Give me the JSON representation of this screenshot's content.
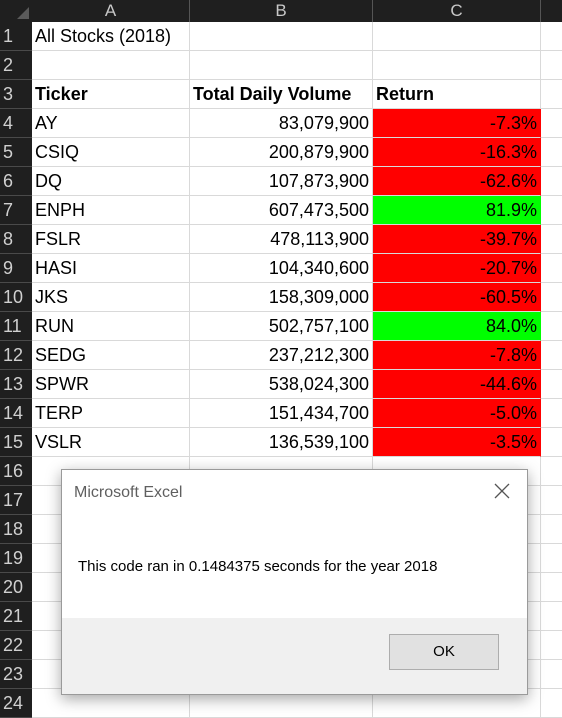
{
  "columns": [
    "A",
    "B",
    "C"
  ],
  "row_numbers": [
    "1",
    "2",
    "3",
    "4",
    "5",
    "6",
    "7",
    "8",
    "9",
    "10",
    "11",
    "12",
    "13",
    "14",
    "15",
    "16",
    "17",
    "18",
    "19",
    "20",
    "21",
    "22",
    "23",
    "24"
  ],
  "sheet": {
    "title": "All Stocks (2018)",
    "headers": {
      "ticker": "Ticker",
      "volume": "Total Daily Volume",
      "return": "Return"
    },
    "rows": [
      {
        "ticker": "AY",
        "volume": "83,079,900",
        "return": "-7.3%",
        "status": "negative"
      },
      {
        "ticker": "CSIQ",
        "volume": "200,879,900",
        "return": "-16.3%",
        "status": "negative"
      },
      {
        "ticker": "DQ",
        "volume": "107,873,900",
        "return": "-62.6%",
        "status": "negative"
      },
      {
        "ticker": "ENPH",
        "volume": "607,473,500",
        "return": "81.9%",
        "status": "positive"
      },
      {
        "ticker": "FSLR",
        "volume": "478,113,900",
        "return": "-39.7%",
        "status": "negative"
      },
      {
        "ticker": "HASI",
        "volume": "104,340,600",
        "return": "-20.7%",
        "status": "negative"
      },
      {
        "ticker": "JKS",
        "volume": "158,309,000",
        "return": "-60.5%",
        "status": "negative"
      },
      {
        "ticker": "RUN",
        "volume": "502,757,100",
        "return": "84.0%",
        "status": "positive"
      },
      {
        "ticker": "SEDG",
        "volume": "237,212,300",
        "return": "-7.8%",
        "status": "negative"
      },
      {
        "ticker": "SPWR",
        "volume": "538,024,300",
        "return": "-44.6%",
        "status": "negative"
      },
      {
        "ticker": "TERP",
        "volume": "151,434,700",
        "return": "-5.0%",
        "status": "negative"
      },
      {
        "ticker": "VSLR",
        "volume": "136,539,100",
        "return": "-3.5%",
        "status": "negative"
      }
    ]
  },
  "colors": {
    "negative_fill": "#ff0000",
    "positive_fill": "#00ff00",
    "header_bg": "#1f1f1f"
  },
  "dialog": {
    "title": "Microsoft Excel",
    "message": "This code ran in 0.1484375 seconds for the year 2018",
    "ok_label": "OK",
    "close_icon": "close-icon"
  }
}
